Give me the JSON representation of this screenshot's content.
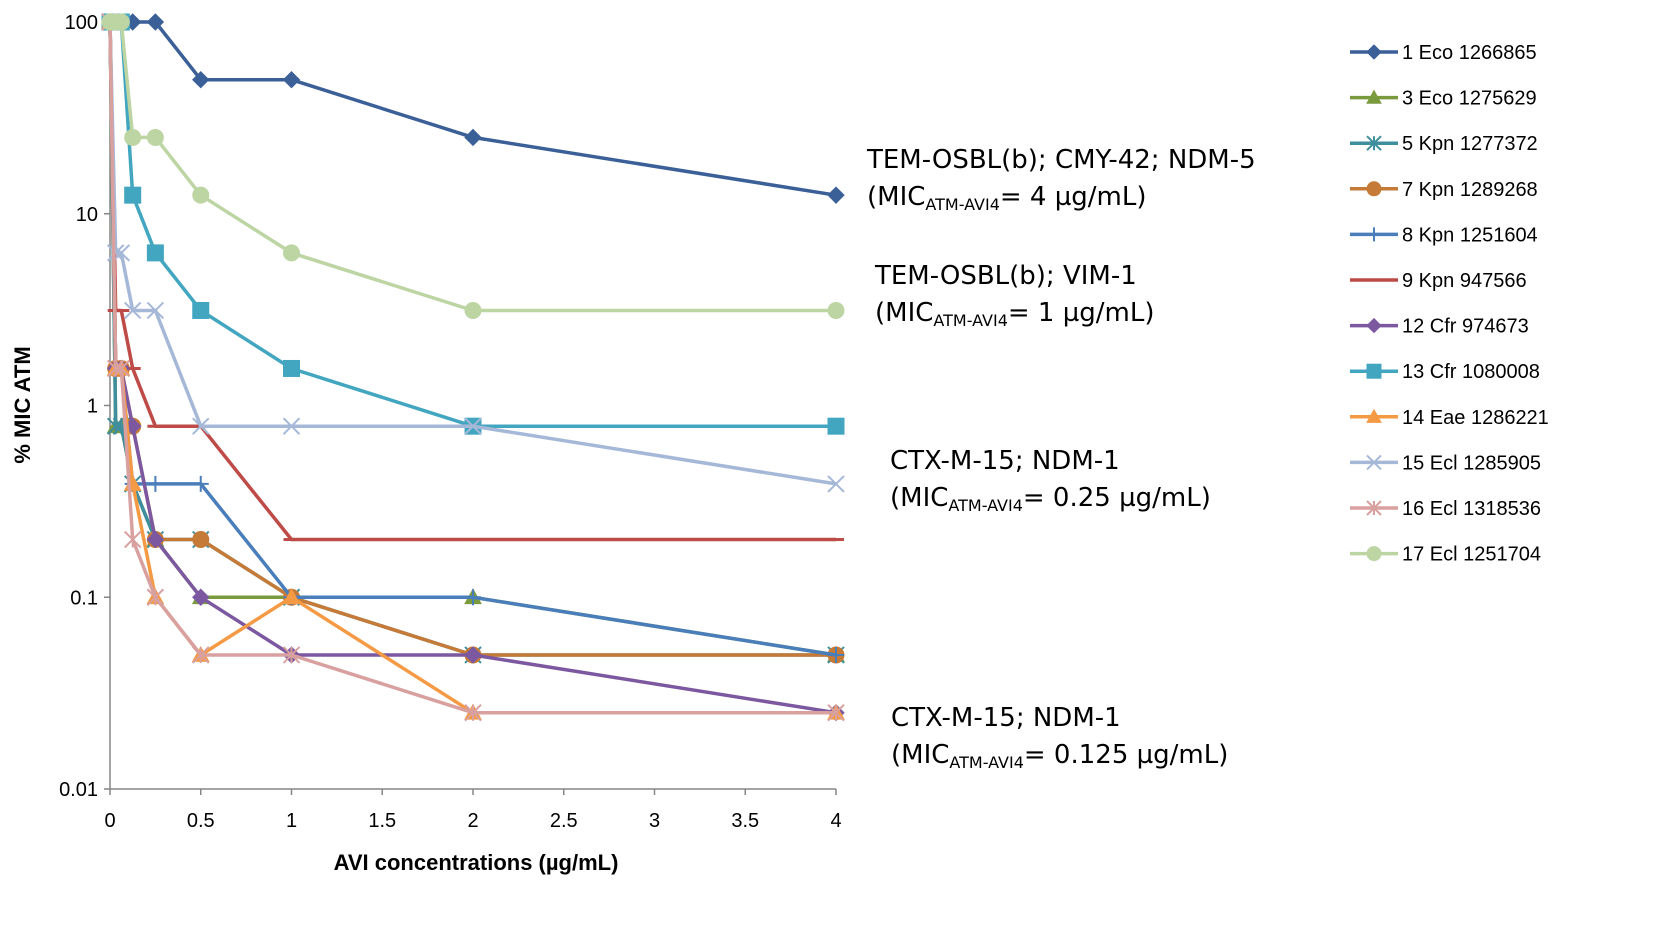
{
  "chart_data": {
    "type": "line",
    "xlabel": "AVI concentrations (µg/mL)",
    "ylabel": "% MIC ATM",
    "yscale": "log",
    "ylim": [
      0.01,
      100
    ],
    "xlim": [
      0,
      4
    ],
    "x_axis_note": "categorical-like spacing: 0,0.5,1,1.5,2,2.5,3,3.5,4 ticks; concentrations 2 and 4 placed at the 2 and 4 ticks",
    "x_ticks": [
      "0",
      "0.5",
      "1",
      "1.5",
      "2",
      "2.5",
      "3",
      "3.5",
      "4"
    ],
    "y_ticks": [
      "100",
      "10",
      "1",
      "0.1",
      "0.01"
    ],
    "grid": false,
    "legend_position": "right",
    "series": [
      {
        "name": "1 Eco 1266865",
        "color": "#3b5f97",
        "marker": "diamond",
        "points": [
          [
            0,
            100
          ],
          [
            0.03125,
            100
          ],
          [
            0.0625,
            100
          ],
          [
            0.125,
            100
          ],
          [
            0.25,
            100
          ],
          [
            0.5,
            50
          ],
          [
            1,
            50
          ],
          [
            2,
            25
          ],
          [
            4,
            12.5
          ]
        ]
      },
      {
        "name": "3 Eco 1275629",
        "color": "#7a9a3e",
        "marker": "triangle",
        "points": [
          [
            0,
            100
          ],
          [
            0.03125,
            0.78
          ],
          [
            0.0625,
            0.78
          ],
          [
            0.125,
            0.39
          ],
          [
            0.25,
            0.2
          ],
          [
            0.5,
            0.1
          ],
          [
            1,
            0.1
          ],
          [
            2,
            0.1
          ],
          [
            4,
            0.05
          ]
        ]
      },
      {
        "name": "5 Kpn 1277372",
        "color": "#3f8e9e",
        "marker": "star",
        "points": [
          [
            0,
            100
          ],
          [
            0.03125,
            0.78
          ],
          [
            0.0625,
            0.78
          ],
          [
            0.125,
            0.39
          ],
          [
            0.25,
            0.2
          ],
          [
            0.5,
            0.2
          ],
          [
            1,
            0.1
          ],
          [
            2,
            0.05
          ],
          [
            4,
            0.05
          ]
        ]
      },
      {
        "name": "7 Kpn 1289268",
        "color": "#c57a37",
        "marker": "circle",
        "points": [
          [
            0,
            100
          ],
          [
            0.03125,
            1.56
          ],
          [
            0.0625,
            1.56
          ],
          [
            0.125,
            0.78
          ],
          [
            0.25,
            0.2
          ],
          [
            0.5,
            0.2
          ],
          [
            1,
            0.1
          ],
          [
            2,
            0.05
          ],
          [
            4,
            0.05
          ]
        ]
      },
      {
        "name": "8 Kpn 1251604",
        "color": "#4a7ebb",
        "marker": "plus",
        "points": [
          [
            0,
            100
          ],
          [
            0.03125,
            1.56
          ],
          [
            0.0625,
            1.56
          ],
          [
            0.125,
            0.39
          ],
          [
            0.25,
            0.39
          ],
          [
            0.5,
            0.39
          ],
          [
            1,
            0.1
          ],
          [
            2,
            0.1
          ],
          [
            4,
            0.05
          ]
        ]
      },
      {
        "name": "9 Kpn 947566",
        "color": "#be4b48",
        "marker": "dash",
        "points": [
          [
            0,
            100
          ],
          [
            0.03125,
            3.13
          ],
          [
            0.0625,
            3.13
          ],
          [
            0.125,
            1.56
          ],
          [
            0.25,
            0.78
          ],
          [
            0.5,
            0.78
          ],
          [
            1,
            0.2
          ],
          [
            2,
            0.2
          ],
          [
            4,
            0.2
          ]
        ]
      },
      {
        "name": "12 Cfr 974673",
        "color": "#7c58a0",
        "marker": "diamond",
        "points": [
          [
            0,
            100
          ],
          [
            0.03125,
            1.56
          ],
          [
            0.0625,
            1.56
          ],
          [
            0.125,
            0.78
          ],
          [
            0.25,
            0.2
          ],
          [
            0.5,
            0.1
          ],
          [
            1,
            0.05
          ],
          [
            2,
            0.05
          ],
          [
            4,
            0.025
          ]
        ]
      },
      {
        "name": "13 Cfr 1080008",
        "color": "#42a6c0",
        "marker": "square",
        "points": [
          [
            0,
            100
          ],
          [
            0.03125,
            100
          ],
          [
            0.0625,
            100
          ],
          [
            0.125,
            12.5
          ],
          [
            0.25,
            6.25
          ],
          [
            0.5,
            3.13
          ],
          [
            1,
            1.56
          ],
          [
            2,
            0.78
          ],
          [
            4,
            0.78
          ]
        ]
      },
      {
        "name": "14 Eae 1286221",
        "color": "#f59a44",
        "marker": "triangle",
        "points": [
          [
            0,
            100
          ],
          [
            0.03125,
            1.56
          ],
          [
            0.0625,
            1.56
          ],
          [
            0.125,
            0.39
          ],
          [
            0.25,
            0.1
          ],
          [
            0.5,
            0.05
          ],
          [
            1,
            0.1
          ],
          [
            2,
            0.025
          ],
          [
            4,
            0.025
          ]
        ]
      },
      {
        "name": "15 Ecl 1285905",
        "color": "#a6b8d8",
        "marker": "x",
        "points": [
          [
            0,
            100
          ],
          [
            0.03125,
            6.25
          ],
          [
            0.0625,
            6.25
          ],
          [
            0.125,
            3.13
          ],
          [
            0.25,
            3.13
          ],
          [
            0.5,
            0.78
          ],
          [
            1,
            0.78
          ],
          [
            2,
            0.78
          ],
          [
            4,
            0.39
          ]
        ]
      },
      {
        "name": "16 Ecl 1318536",
        "color": "#d9a0a0",
        "marker": "star",
        "points": [
          [
            0,
            100
          ],
          [
            0.03125,
            1.56
          ],
          [
            0.0625,
            1.56
          ],
          [
            0.125,
            0.2
          ],
          [
            0.25,
            0.1
          ],
          [
            0.5,
            0.05
          ],
          [
            1,
            0.05
          ],
          [
            2,
            0.025
          ],
          [
            4,
            0.025
          ]
        ]
      },
      {
        "name": "17 Ecl 1251704",
        "color": "#bcd5a3",
        "marker": "circle",
        "points": [
          [
            0,
            100
          ],
          [
            0.03125,
            100
          ],
          [
            0.0625,
            100
          ],
          [
            0.125,
            25
          ],
          [
            0.25,
            25
          ],
          [
            0.5,
            12.5
          ],
          [
            1,
            6.25
          ],
          [
            2,
            3.13
          ],
          [
            4,
            3.13
          ]
        ]
      }
    ],
    "annotations": [
      {
        "line1": "TEM-OSBL(b); CMY-42; NDM-5",
        "line2_prefix": "(MIC",
        "line2_sub": "ATM-AVI4",
        "line2_suffix": "= 4 µg/mL)"
      },
      {
        "line1": "TEM-OSBL(b); VIM-1",
        "line2_prefix": "(MIC",
        "line2_sub": "ATM-AVI4",
        "line2_suffix": "= 1 µg/mL)"
      },
      {
        "line1": "CTX-M-15; NDM-1",
        "line2_prefix": "(MIC",
        "line2_sub": "ATM-AVI4",
        "line2_suffix": "= 0.25 µg/mL)"
      },
      {
        "line1": "CTX-M-15; NDM-1",
        "line2_prefix": "(MIC",
        "line2_sub": "ATM-AVI4",
        "line2_suffix": "= 0.125 µg/mL)"
      }
    ]
  }
}
